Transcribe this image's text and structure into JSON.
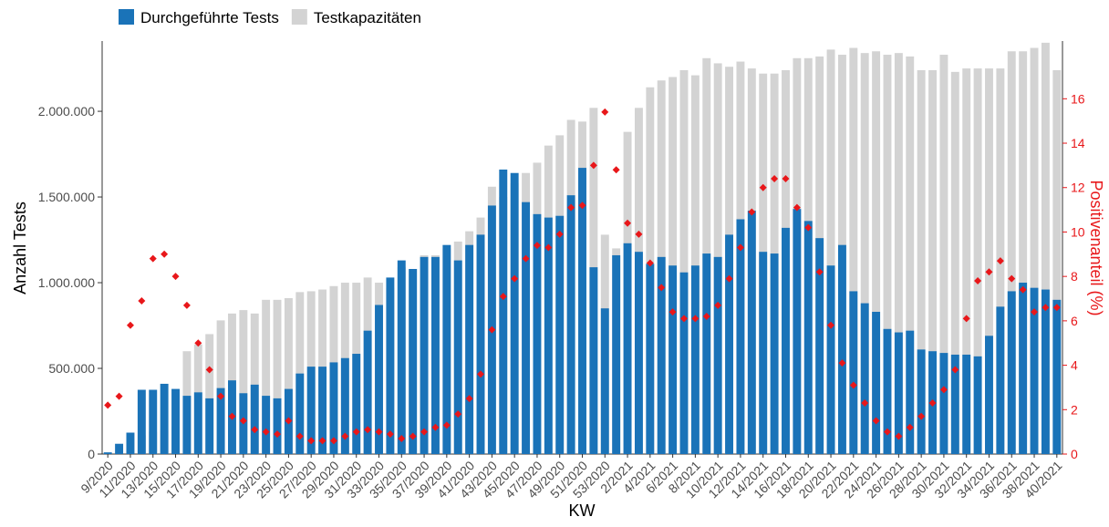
{
  "chart_data": {
    "type": "bar",
    "xlabel": "KW",
    "ylabel": "Anzahl Tests",
    "y2label": "Positivenanteil (%)",
    "categories": [
      "9/2020",
      null,
      "11/2020",
      null,
      "13/2020",
      null,
      "15/2020",
      null,
      "17/2020",
      null,
      "19/2020",
      null,
      "21/2020",
      null,
      "23/2020",
      null,
      "25/2020",
      null,
      "27/2020",
      null,
      "29/2020",
      null,
      "31/2020",
      null,
      "33/2020",
      null,
      "35/2020",
      null,
      "37/2020",
      null,
      "39/2020",
      null,
      "41/2020",
      null,
      "43/2020",
      null,
      "45/2020",
      null,
      "47/2020",
      null,
      "49/2020",
      null,
      "51/2020",
      null,
      "53/2020",
      null,
      "2/2021",
      null,
      "4/2021",
      null,
      "6/2021",
      null,
      "8/2021",
      null,
      "10/2021",
      null,
      "12/2021",
      null,
      "14/2021",
      null,
      "16/2021",
      null,
      "18/2021",
      null,
      "20/2021",
      null,
      "22/2021",
      null,
      "24/2021",
      null,
      "26/2021",
      null,
      "28/2021",
      null,
      "30/2021",
      null,
      "32/2021",
      null,
      "34/2021",
      null,
      "36/2021",
      null,
      "38/2021",
      null,
      "40/2021"
    ],
    "series": [
      {
        "name": "Testkapazitäten",
        "type": "bar",
        "color": "#d3d3d3",
        "values": [
          null,
          null,
          null,
          110000,
          130000,
          140000,
          160000,
          600000,
          640000,
          700000,
          780000,
          820000,
          840000,
          820000,
          900000,
          900000,
          910000,
          945000,
          950000,
          960000,
          980000,
          1000000,
          1000000,
          1030000,
          1000000,
          970000,
          1090000,
          1080000,
          1160000,
          1160000,
          1200000,
          1240000,
          1300000,
          1380000,
          1560000,
          1500000,
          1580000,
          1640000,
          1700000,
          1800000,
          1860000,
          1950000,
          1940000,
          2020000,
          1280000,
          1200000,
          1880000,
          2020000,
          2140000,
          2180000,
          2200000,
          2240000,
          2210000,
          2310000,
          2280000,
          2260000,
          2290000,
          2250000,
          2220000,
          2220000,
          2240000,
          2310000,
          2310000,
          2320000,
          2360000,
          2330000,
          2370000,
          2340000,
          2350000,
          2330000,
          2340000,
          2320000,
          2240000,
          2240000,
          2330000,
          2230000,
          2250000,
          2250000,
          2250000,
          2250000,
          2350000,
          2350000,
          2370000,
          2400000,
          2240000
        ]
      },
      {
        "name": "Durchgeführte Tests",
        "type": "bar",
        "color": "#1a73b8",
        "values": [
          10000,
          60000,
          125000,
          375000,
          375000,
          410000,
          380000,
          340000,
          360000,
          325000,
          385000,
          430000,
          355000,
          405000,
          340000,
          325000,
          380000,
          470000,
          510000,
          510000,
          535000,
          560000,
          585000,
          720000,
          870000,
          1030000,
          1130000,
          1080000,
          1150000,
          1150000,
          1220000,
          1130000,
          1220000,
          1280000,
          1450000,
          1660000,
          1640000,
          1470000,
          1400000,
          1380000,
          1390000,
          1510000,
          1670000,
          1090000,
          850000,
          1160000,
          1230000,
          1180000,
          1110000,
          1150000,
          1100000,
          1060000,
          1100000,
          1170000,
          1150000,
          1280000,
          1370000,
          1420000,
          1180000,
          1170000,
          1320000,
          1430000,
          1360000,
          1260000,
          1100000,
          1220000,
          950000,
          880000,
          830000,
          730000,
          710000,
          720000,
          610000,
          600000,
          590000,
          580000,
          580000,
          570000,
          690000,
          860000,
          950000,
          1000000,
          970000,
          960000,
          900000
        ]
      },
      {
        "type": "scatter",
        "axis": "y2",
        "color": "#e8171a",
        "values": [
          2.2,
          2.6,
          5.8,
          6.9,
          8.8,
          9.0,
          8.0,
          6.7,
          5.0,
          3.8,
          2.6,
          1.7,
          1.5,
          1.1,
          1.0,
          0.9,
          1.5,
          0.8,
          0.6,
          0.6,
          0.6,
          0.8,
          1.0,
          1.1,
          1.0,
          0.9,
          0.7,
          0.8,
          1.0,
          1.2,
          1.3,
          1.8,
          2.5,
          3.6,
          5.6,
          7.1,
          7.9,
          8.8,
          9.4,
          9.3,
          9.9,
          11.1,
          11.2,
          13.0,
          15.4,
          12.8,
          10.4,
          9.9,
          8.6,
          7.5,
          6.4,
          6.1,
          6.1,
          6.2,
          6.7,
          7.9,
          9.3,
          10.9,
          12.0,
          12.4,
          12.4,
          11.1,
          10.2,
          8.2,
          5.8,
          4.1,
          3.1,
          2.3,
          1.5,
          1.0,
          0.8,
          1.2,
          1.7,
          2.3,
          2.9,
          3.8,
          6.1,
          7.8,
          8.2,
          8.7,
          7.9,
          7.4,
          6.4,
          6.6,
          6.6
        ]
      }
    ],
    "ylim": [
      0,
      2410000
    ],
    "yticks": [
      0,
      {
        "value": 500000,
        "label": "500.000"
      },
      {
        "value": 1000000,
        "label": "1.000.000"
      },
      {
        "value": 1500000,
        "label": "1.500.000"
      },
      {
        "value": 2000000,
        "label": "2.000.000"
      }
    ],
    "y2lim": [
      0,
      18.6
    ],
    "y2ticks": [
      0,
      2,
      4,
      6,
      8,
      10,
      12,
      14,
      16
    ],
    "legend": "top-left"
  }
}
